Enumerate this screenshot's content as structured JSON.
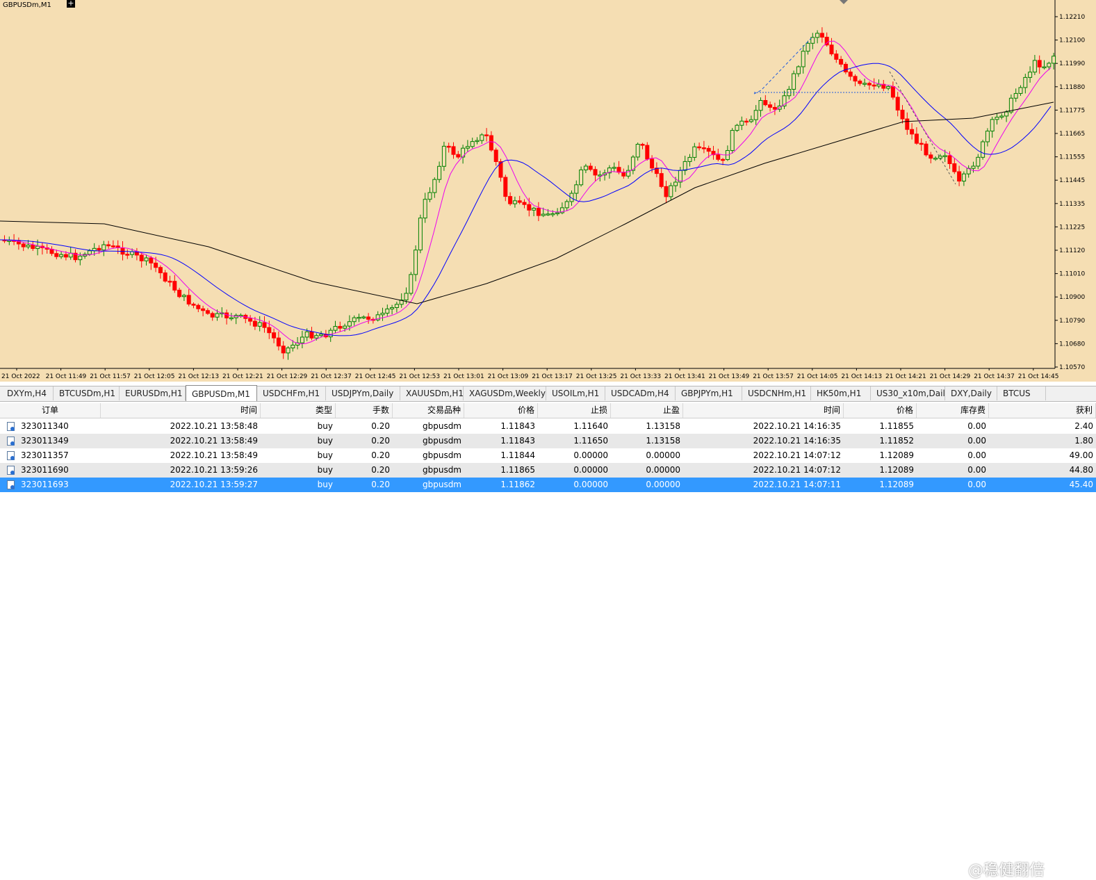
{
  "chart": {
    "symbol_label": "GBPUSDm,M1",
    "price_labels": [
      "1.12210",
      "1.12100",
      "1.11990",
      "1.11880",
      "1.11775",
      "1.11665",
      "1.11555",
      "1.11445",
      "1.11335",
      "1.11225",
      "1.11120",
      "1.11010",
      "1.10900",
      "1.10790",
      "1.10680",
      "1.10570"
    ],
    "time_labels": [
      "21 Oct 2022",
      "21 Oct 11:49",
      "21 Oct 11:57",
      "21 Oct 12:05",
      "21 Oct 12:13",
      "21 Oct 12:21",
      "21 Oct 12:29",
      "21 Oct 12:37",
      "21 Oct 12:45",
      "21 Oct 12:53",
      "21 Oct 13:01",
      "21 Oct 13:09",
      "21 Oct 13:17",
      "21 Oct 13:25",
      "21 Oct 13:33",
      "21 Oct 13:41",
      "21 Oct 13:49",
      "21 Oct 13:57",
      "21 Oct 14:05",
      "21 Oct 14:13",
      "21 Oct 14:21",
      "21 Oct 14:29",
      "21 Oct 14:37",
      "21 Oct 14:45"
    ],
    "colors": {
      "background": "#f5deb3",
      "bull": "#008000",
      "bear": "#ff0000",
      "ma_fast": "#ee00ee",
      "ma_mid": "#0000ff",
      "ma_slow": "#000000"
    }
  },
  "tabs": [
    "DXYm,H4",
    "BTCUSDm,H1",
    "EURUSDm,H1",
    "GBPUSDm,M1",
    "USDCHFm,H1",
    "USDJPYm,Daily",
    "XAUUSDm,H1",
    "XAGUSDm,Weekly",
    "USOILm,H1",
    "USDCADm,H4",
    "GBPJPYm,H1",
    "USDCNHm,H1",
    "HK50m,H1",
    "US30_x10m,Daily",
    "DXY,Daily",
    "BTCUS"
  ],
  "active_tab": "GBPUSDm,M1",
  "orders": {
    "columns": [
      "订单",
      "时间",
      "类型",
      "手数",
      "交易品种",
      "价格",
      "止损",
      "止盈",
      "时间",
      "价格",
      "库存费",
      "获利"
    ],
    "rows": [
      [
        "323011340",
        "2022.10.21 13:58:48",
        "buy",
        "0.20",
        "gbpusdm",
        "1.11843",
        "1.11640",
        "1.13158",
        "2022.10.21 14:16:35",
        "1.11855",
        "0.00",
        "2.40"
      ],
      [
        "323011349",
        "2022.10.21 13:58:49",
        "buy",
        "0.20",
        "gbpusdm",
        "1.11843",
        "1.11650",
        "1.13158",
        "2022.10.21 14:16:35",
        "1.11852",
        "0.00",
        "1.80"
      ],
      [
        "323011357",
        "2022.10.21 13:58:49",
        "buy",
        "0.20",
        "gbpusdm",
        "1.11844",
        "0.00000",
        "0.00000",
        "2022.10.21 14:07:12",
        "1.12089",
        "0.00",
        "49.00"
      ],
      [
        "323011690",
        "2022.10.21 13:59:26",
        "buy",
        "0.20",
        "gbpusdm",
        "1.11865",
        "0.00000",
        "0.00000",
        "2022.10.21 14:07:12",
        "1.12089",
        "0.00",
        "44.80"
      ],
      [
        "323011693",
        "2022.10.21 13:59:27",
        "buy",
        "0.20",
        "gbpusdm",
        "1.11862",
        "0.00000",
        "0.00000",
        "2022.10.21 14:07:11",
        "1.12089",
        "0.00",
        "45.40"
      ]
    ],
    "selected_index": 4
  },
  "watermark": "@稳健翻倍"
}
